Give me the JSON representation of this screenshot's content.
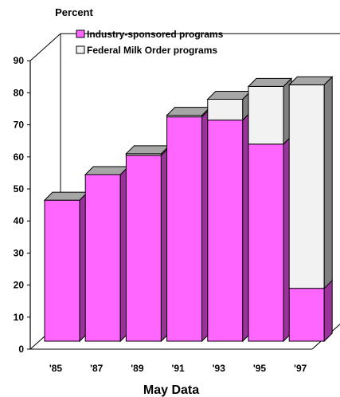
{
  "chart_data": {
    "type": "bar",
    "stacked": true,
    "three_d": true,
    "ylabel": "Percent",
    "xlabel": "May  Data",
    "ylim": [
      0,
      90
    ],
    "yticks": [
      0,
      10,
      20,
      30,
      40,
      50,
      60,
      70,
      80,
      90
    ],
    "categories": [
      "'85",
      "'87",
      "'89",
      "'91",
      "'93",
      "'95",
      "'97"
    ],
    "series": [
      {
        "name": "Industry-sponsored programs",
        "color": "#ff66ff",
        "values": [
          44,
          52,
          58,
          70,
          69,
          61.5,
          16.5
        ]
      },
      {
        "name": "Federal Milk Order programs",
        "color": "#f2f2f2",
        "values": [
          0,
          0,
          0.5,
          0.5,
          6.5,
          18,
          63.5
        ]
      }
    ],
    "grid": false,
    "legend": "top-left"
  }
}
